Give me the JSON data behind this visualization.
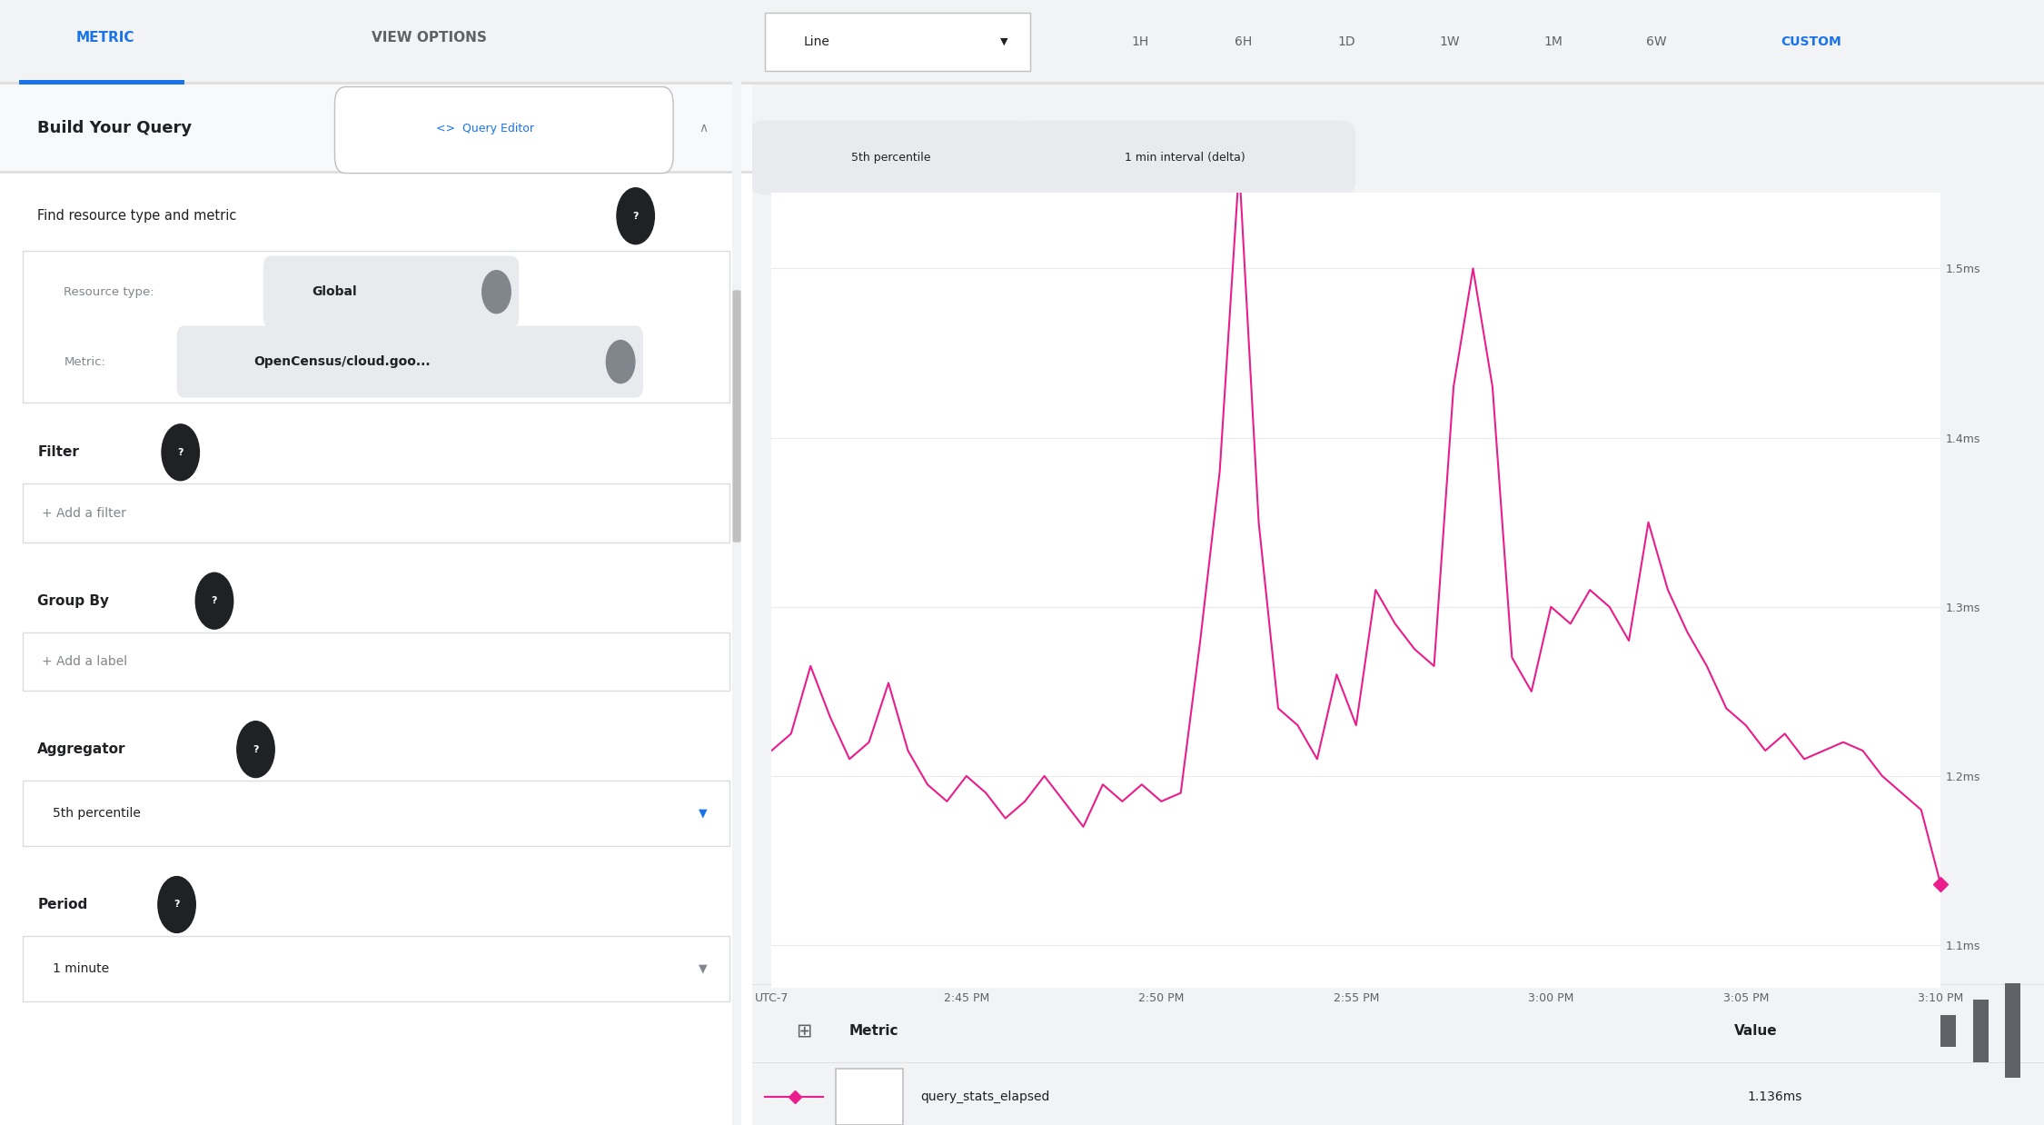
{
  "tab_metric_text": "METRIC",
  "tab_metric_color": "#1a73e8",
  "tab_view_options_text": "VIEW OPTIONS",
  "tab_view_options_color": "#5f6368",
  "build_query_title": "Build Your Query",
  "query_editor_text": "<>  Query Editor",
  "find_resource_text": "Find resource type and metric",
  "resource_type_label": "Resource type:",
  "resource_type_chip": "Global",
  "metric_label": "Metric:",
  "metric_chip": "OpenCensus/cloud.goo...",
  "filter_label": "Filter",
  "filter_placeholder": "+ Add a filter",
  "group_by_label": "Group By",
  "group_by_placeholder": "+ Add a label",
  "aggregator_label": "Aggregator",
  "aggregator_value": "5th percentile",
  "period_label": "Period",
  "period_value": "1 minute",
  "line_dropdown": "Line",
  "time_buttons": [
    "1H",
    "6H",
    "1D",
    "1W",
    "1M",
    "6W",
    "CUSTOM"
  ],
  "chip1": "5th percentile",
  "chip2": "1 min interval (delta)",
  "y_ticks": [
    "1.1ms",
    "1.2ms",
    "1.3ms",
    "1.4ms",
    "1.5ms"
  ],
  "y_values": [
    1.1,
    1.2,
    1.3,
    1.4,
    1.5
  ],
  "x_ticks": [
    "UTC-7",
    "2:45 PM",
    "2:50 PM",
    "2:55 PM",
    "3:00 PM",
    "3:05 PM",
    "3:10 PM"
  ],
  "line_color": "#e91e8c",
  "legend_metric_text": "Metric",
  "legend_value_text": "Value",
  "legend_series_text": "query_stats_elapsed",
  "legend_series_value": "1.136ms",
  "line_data_x": [
    0,
    1,
    2,
    3,
    4,
    5,
    6,
    7,
    8,
    9,
    10,
    11,
    12,
    13,
    14,
    15,
    16,
    17,
    18,
    19,
    20,
    21,
    22,
    23,
    24,
    25,
    26,
    27,
    28,
    29,
    30,
    31,
    32,
    33,
    34,
    35,
    36,
    37,
    38,
    39,
    40,
    41,
    42,
    43,
    44,
    45,
    46,
    47,
    48,
    49,
    50,
    51,
    52,
    53,
    54,
    55,
    56,
    57,
    58,
    59,
    60
  ],
  "line_data_y": [
    1.215,
    1.225,
    1.265,
    1.235,
    1.21,
    1.22,
    1.255,
    1.215,
    1.195,
    1.185,
    1.2,
    1.19,
    1.175,
    1.185,
    1.2,
    1.185,
    1.17,
    1.195,
    1.185,
    1.195,
    1.185,
    1.19,
    1.28,
    1.38,
    1.56,
    1.35,
    1.24,
    1.23,
    1.21,
    1.26,
    1.23,
    1.31,
    1.29,
    1.275,
    1.265,
    1.43,
    1.5,
    1.43,
    1.27,
    1.25,
    1.3,
    1.29,
    1.31,
    1.3,
    1.28,
    1.35,
    1.31,
    1.285,
    1.265,
    1.24,
    1.23,
    1.215,
    1.225,
    1.21,
    1.215,
    1.22,
    1.215,
    1.2,
    1.19,
    1.18,
    1.136
  ]
}
